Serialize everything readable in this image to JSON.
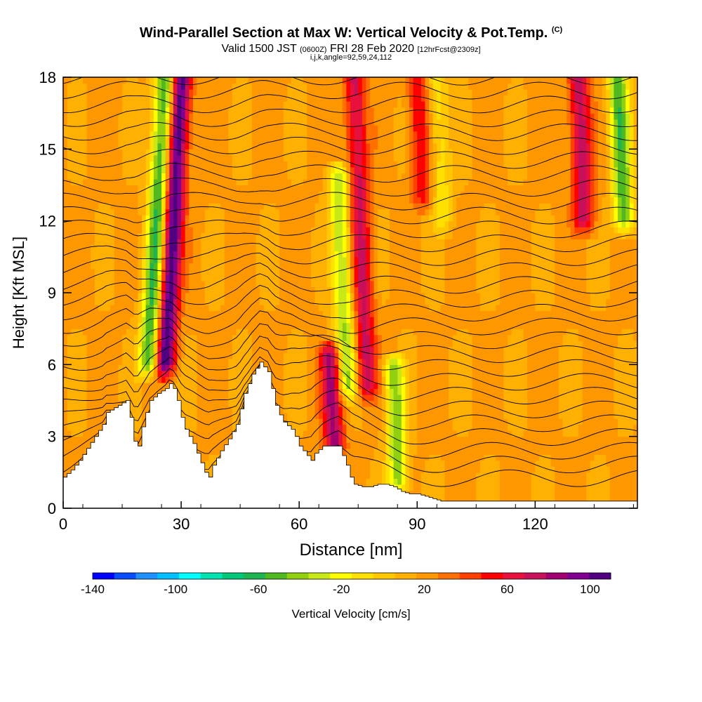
{
  "header": {
    "title": "Wind-Parallel Section at Max W: Vertical Velocity & Pot.Temp.",
    "copyright": "(C)",
    "valid_prefix": "Valid 1500 JST",
    "utc": "(0600Z)",
    "valid_date": "FRI 28 Feb 2020",
    "forecast": "[12hrFcst@2309z]",
    "indices": "i,j,k,angle=92,59,24,112"
  },
  "colors": {
    "colorbar": [
      "#0000ff",
      "#0a4cff",
      "#1e90ff",
      "#00bfff",
      "#00ffff",
      "#00e3b0",
      "#00c878",
      "#20b450",
      "#50b820",
      "#90d010",
      "#c8e818",
      "#ffff00",
      "#ffe000",
      "#ffc800",
      "#ffb000",
      "#ff9800",
      "#ff7000",
      "#ff4000",
      "#ff0000",
      "#e8103c",
      "#c8105a",
      "#a00070",
      "#800090",
      "#500080"
    ],
    "terrain": "#ffffff",
    "contour": "#000000"
  },
  "chart_data": {
    "type": "heatmap",
    "xlabel": "Distance [nm]",
    "ylabel": "Height [Kft MSL]",
    "xlim": [
      0,
      146
    ],
    "ylim": [
      0,
      18
    ],
    "xticks": [
      0,
      30,
      60,
      90,
      120
    ],
    "yticks": [
      0,
      3,
      6,
      9,
      12,
      15,
      18
    ],
    "colorbar": {
      "label": "Vertical Velocity [cm/s]",
      "range": [
        -140,
        110
      ],
      "ticks": [
        -140,
        -100,
        -60,
        -20,
        20,
        60,
        100
      ]
    },
    "terrain_height_kft": [
      [
        0,
        1.3
      ],
      [
        2,
        1.6
      ],
      [
        4,
        2.0
      ],
      [
        6,
        2.5
      ],
      [
        8,
        3.0
      ],
      [
        10,
        3.5
      ],
      [
        11,
        4.0
      ],
      [
        13,
        4.2
      ],
      [
        15,
        4.4
      ],
      [
        16,
        4.5
      ],
      [
        17,
        3.8
      ],
      [
        18,
        2.8
      ],
      [
        19,
        2.6
      ],
      [
        20,
        3.4
      ],
      [
        21,
        4.0
      ],
      [
        22,
        4.5
      ],
      [
        24,
        4.8
      ],
      [
        26,
        5.0
      ],
      [
        27,
        5.2
      ],
      [
        28,
        5.0
      ],
      [
        29,
        4.5
      ],
      [
        30,
        3.8
      ],
      [
        31,
        3.3
      ],
      [
        32,
        3.0
      ],
      [
        33,
        2.7
      ],
      [
        34,
        2.3
      ],
      [
        35,
        1.9
      ],
      [
        36,
        1.5
      ],
      [
        37,
        1.3
      ],
      [
        38,
        1.8
      ],
      [
        40,
        2.4
      ],
      [
        42,
        2.9
      ],
      [
        44,
        3.5
      ],
      [
        46,
        4.8
      ],
      [
        48,
        5.6
      ],
      [
        50,
        6.1
      ],
      [
        52,
        5.7
      ],
      [
        53,
        5.0
      ],
      [
        54,
        4.3
      ],
      [
        55,
        3.9
      ],
      [
        56,
        3.6
      ],
      [
        58,
        3.3
      ],
      [
        59,
        3.0
      ],
      [
        60,
        2.6
      ],
      [
        62,
        2.2
      ],
      [
        63,
        2.0
      ],
      [
        64,
        2.3
      ],
      [
        66,
        2.6
      ],
      [
        68,
        2.6
      ],
      [
        70,
        2.6
      ],
      [
        71,
        2.2
      ],
      [
        72,
        1.8
      ],
      [
        73,
        1.3
      ],
      [
        74,
        1.0
      ],
      [
        76,
        0.9
      ],
      [
        78,
        0.9
      ],
      [
        80,
        1.0
      ],
      [
        82,
        1.0
      ],
      [
        84,
        0.9
      ],
      [
        86,
        0.7
      ],
      [
        88,
        0.6
      ],
      [
        90,
        0.6
      ],
      [
        92,
        0.5
      ],
      [
        94,
        0.4
      ],
      [
        96,
        0.3
      ],
      [
        100,
        0.3
      ],
      [
        110,
        0.3
      ],
      [
        120,
        0.3
      ],
      [
        130,
        0.3
      ],
      [
        140,
        0.3
      ],
      [
        146,
        0.3
      ]
    ],
    "updraft_cores": [
      {
        "x": 30,
        "top": 18,
        "bottom": 6,
        "w": 95
      },
      {
        "x": 74,
        "top": 18,
        "bottom": 5,
        "w": 55
      },
      {
        "x": 68,
        "top": 6.5,
        "bottom": 2.6,
        "w": 65
      },
      {
        "x": 131,
        "top": 18,
        "bottom": 12,
        "w": 60
      },
      {
        "x": 90,
        "top": 18,
        "bottom": 13,
        "w": 40
      }
    ],
    "downdraft_cores": [
      {
        "x": 26,
        "top": 18,
        "bottom": 6,
        "w": -80
      },
      {
        "x": 70,
        "top": 14,
        "bottom": 5,
        "w": -55
      },
      {
        "x": 84,
        "top": 6,
        "bottom": 1,
        "w": -60
      },
      {
        "x": 141,
        "top": 18,
        "bottom": 12,
        "w": -70
      },
      {
        "x": 95,
        "top": 18,
        "bottom": 12,
        "w": -30
      }
    ]
  }
}
